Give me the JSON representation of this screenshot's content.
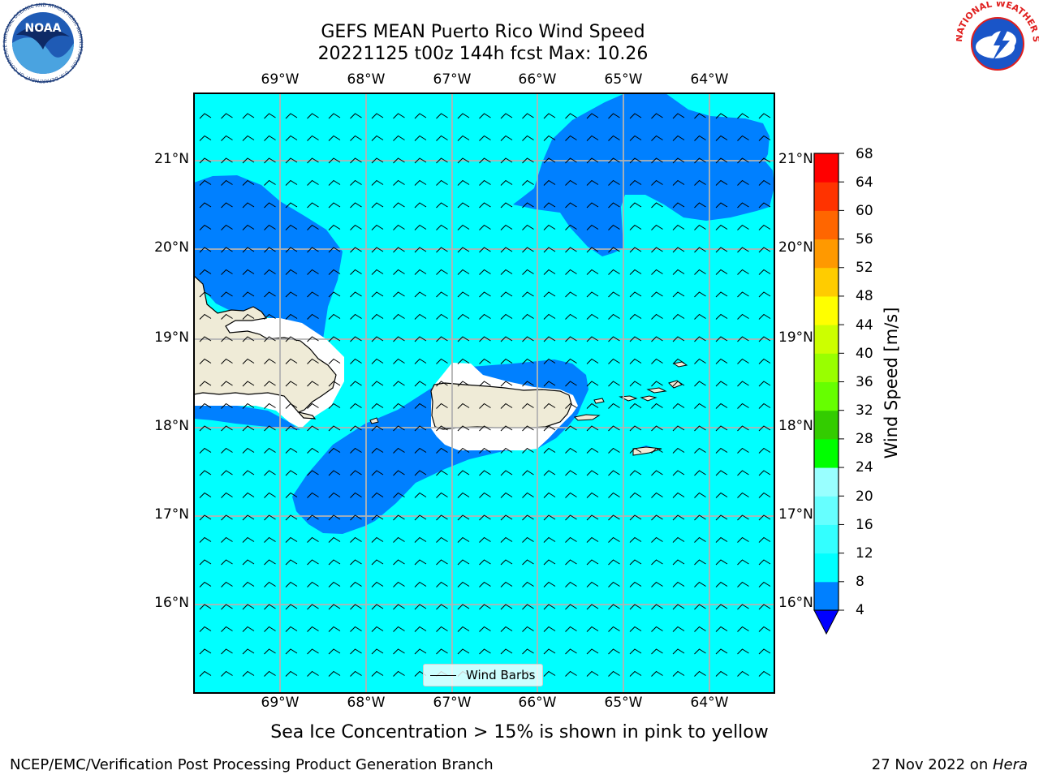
{
  "title": {
    "line1": "GEFS MEAN Puerto Rico Wind Speed",
    "line2": "20221125 t00z 144h fcst   Max: 10.26"
  },
  "map": {
    "lon_labels": [
      "69°W",
      "68°W",
      "67°W",
      "66°W",
      "65°W",
      "64°W"
    ],
    "lat_labels": [
      "21°N",
      "20°N",
      "19°N",
      "18°N",
      "17°N",
      "16°N"
    ],
    "lon_range": [
      -70,
      -63.25
    ],
    "lat_range": [
      15,
      21.75
    ],
    "colors": {
      "ocean_light": "#00ffff",
      "ocean_dark": "#0080ff",
      "land": "#efebd7",
      "grid": "#b3b3b3"
    }
  },
  "legend": {
    "label": "Wind Barbs"
  },
  "colorbar": {
    "title": "Wind Speed [m/s]",
    "ticks": [
      "4",
      "8",
      "12",
      "16",
      "20",
      "24",
      "28",
      "32",
      "36",
      "40",
      "44",
      "48",
      "52",
      "56",
      "60",
      "64",
      "68"
    ],
    "colors": [
      "#0080ff",
      "#00ffff",
      "#33ffff",
      "#66ffff",
      "#99ffff",
      "#00ff00",
      "#33cc00",
      "#66ff00",
      "#99ff00",
      "#ccff00",
      "#ffff00",
      "#ffcc00",
      "#ff9900",
      "#ff6600",
      "#ff3300",
      "#ff0000"
    ],
    "underflow_color": "#0000ff"
  },
  "caption": "Sea Ice Concentration > 15% is shown in pink to yellow",
  "footer": {
    "left": "NCEP/EMC/Verification Post Processing Product Generation Branch",
    "right_prefix": "27 Nov 2022 on ",
    "right_host": "Hera"
  },
  "logos": {
    "noaa_text": "NOAA",
    "noaa_ring": "NATIONAL OCEANIC AND ATMOSPHERIC ADMINISTRATION · U.S. DEPARTMENT OF COMMERCE",
    "nws_ring": "NATIONAL WEATHER SERVICE"
  }
}
